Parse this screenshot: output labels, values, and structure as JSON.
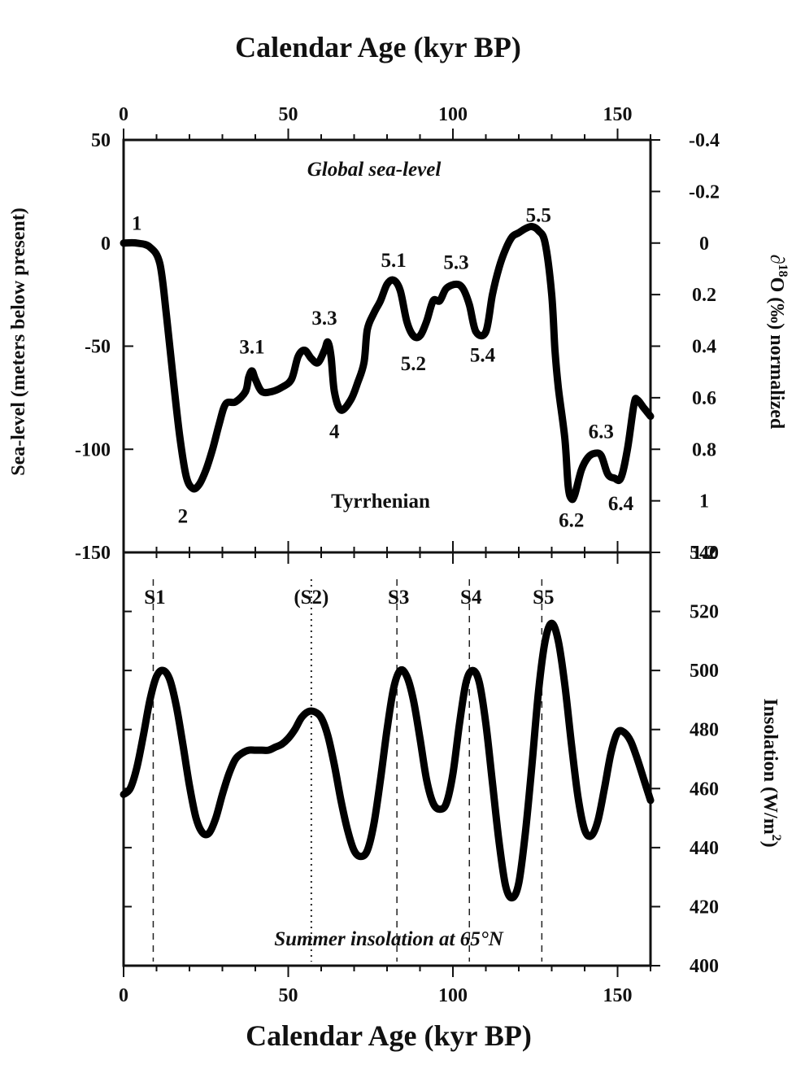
{
  "chart_data": [
    {
      "type": "line",
      "title": "Global sea-level",
      "title_style": "italic",
      "top_axis_title": "Calendar Age (kyr BP)",
      "xlabel": "Calendar Age (kyr BP)",
      "ylabel": "Sea-level (meters below present)",
      "y2label_parts": [
        "∂",
        "18",
        "O (‰) normalized"
      ],
      "xlim": [
        0,
        160
      ],
      "ylim": [
        -150,
        50
      ],
      "y2lim": [
        1.2,
        -0.4
      ],
      "x_ticks": [
        "0",
        "50",
        "100",
        "150"
      ],
      "y_ticks": [
        "50",
        "0",
        "-50",
        "-100",
        "-150"
      ],
      "y2_ticks": [
        "-0.4",
        "-0.2",
        "0",
        "0.2",
        "0.4",
        "0.6",
        "0.8",
        "1",
        "1.2"
      ],
      "region_label": "Tyrrhenian",
      "series": [
        {
          "x": [
            0,
            4,
            8,
            11,
            13,
            15,
            17,
            19,
            21,
            23,
            25,
            27,
            29,
            31,
            34,
            37,
            38,
            39,
            40,
            42,
            45,
            48,
            51,
            53,
            55,
            57,
            59,
            61,
            62,
            63,
            64,
            66,
            69,
            71,
            73,
            74,
            76,
            78,
            80,
            82,
            84,
            86,
            88,
            90,
            92,
            94,
            96,
            98,
            101,
            103,
            105,
            107,
            110,
            112,
            114,
            116,
            118,
            120,
            122,
            124,
            126,
            128,
            130,
            131,
            132,
            134,
            135,
            136,
            137,
            139,
            141,
            143,
            145,
            147,
            149,
            151,
            153,
            155,
            156,
            158,
            160
          ],
          "y": [
            0,
            0,
            -2,
            -10,
            -35,
            -65,
            -93,
            -113,
            -119,
            -117,
            -110,
            -100,
            -88,
            -78,
            -77,
            -72,
            -65,
            -62,
            -66,
            -72,
            -72,
            -70,
            -66,
            -55,
            -52,
            -56,
            -58,
            -52,
            -48,
            -55,
            -72,
            -81,
            -76,
            -68,
            -58,
            -42,
            -34,
            -28,
            -20,
            -18,
            -23,
            -38,
            -45,
            -45,
            -38,
            -28,
            -28,
            -22,
            -20,
            -22,
            -30,
            -43,
            -43,
            -25,
            -12,
            -3,
            3,
            5,
            7,
            8,
            6,
            0,
            -25,
            -52,
            -70,
            -95,
            -118,
            -124,
            -122,
            -110,
            -104,
            -102,
            -103,
            -112,
            -114,
            -114,
            -100,
            -78,
            -76,
            -80,
            -84
          ]
        }
      ],
      "annotations": [
        {
          "label": "1",
          "x": 4,
          "y": 10
        },
        {
          "label": "2",
          "x": 18,
          "y": -132
        },
        {
          "label": "3.1",
          "x": 39,
          "y": -50
        },
        {
          "label": "3.3",
          "x": 61,
          "y": -36
        },
        {
          "label": "4",
          "x": 64,
          "y": -91
        },
        {
          "label": "5.1",
          "x": 82,
          "y": -8
        },
        {
          "label": "5.2",
          "x": 88,
          "y": -58
        },
        {
          "label": "5.3",
          "x": 101,
          "y": -9
        },
        {
          "label": "5.4",
          "x": 109,
          "y": -54
        },
        {
          "label": "5.5",
          "x": 126,
          "y": 14
        },
        {
          "label": "6.2",
          "x": 136,
          "y": -134
        },
        {
          "label": "6.3",
          "x": 145,
          "y": -91
        },
        {
          "label": "6.4",
          "x": 151,
          "y": -126
        }
      ]
    },
    {
      "type": "line",
      "title": "Summer insolation at 65°N",
      "title_style": "italic",
      "xlabel": "Calendar Age (kyr BP)",
      "y2label": "Insolation (W/m²)",
      "y2label_parts": [
        "Insolation   (W/m",
        "2",
        ")"
      ],
      "xlim": [
        0,
        160
      ],
      "ylim": [
        400,
        540
      ],
      "x_ticks": [
        "0",
        "50",
        "100",
        "150"
      ],
      "y2_ticks": [
        "540",
        "520",
        "500",
        "480",
        "460",
        "440",
        "420",
        "400"
      ],
      "series": [
        {
          "x": [
            0,
            2,
            4,
            6,
            8,
            10,
            12,
            14,
            16,
            18,
            20,
            22,
            24,
            26,
            28,
            30,
            32,
            34,
            36,
            38,
            40,
            42,
            44,
            46,
            48,
            50,
            52,
            54,
            56,
            58,
            60,
            62,
            64,
            66,
            68,
            70,
            72,
            74,
            76,
            78,
            80,
            82,
            84,
            86,
            88,
            90,
            92,
            94,
            96,
            98,
            100,
            102,
            104,
            106,
            108,
            110,
            112,
            114,
            116,
            118,
            120,
            122,
            124,
            126,
            128,
            130,
            132,
            134,
            136,
            138,
            140,
            142,
            144,
            146,
            148,
            150,
            152,
            154,
            156,
            158,
            160
          ],
          "y": [
            458,
            460,
            467,
            478,
            490,
            498,
            500,
            497,
            488,
            475,
            461,
            450,
            445,
            445,
            450,
            458,
            465,
            470,
            472,
            473,
            473,
            473,
            473,
            474,
            475,
            477,
            480,
            484,
            486,
            486,
            484,
            478,
            468,
            456,
            446,
            439,
            437,
            439,
            448,
            463,
            480,
            494,
            500,
            498,
            490,
            477,
            463,
            455,
            453,
            455,
            465,
            482,
            496,
            500,
            496,
            482,
            462,
            442,
            427,
            423,
            428,
            445,
            468,
            493,
            510,
            516,
            510,
            495,
            475,
            457,
            446,
            444,
            449,
            460,
            472,
            479,
            479,
            476,
            470,
            463,
            456
          ]
        }
      ],
      "markers": [
        {
          "label": "S1",
          "x": 9,
          "style": "dashed"
        },
        {
          "label": "(S2)",
          "x": 57,
          "style": "dotted"
        },
        {
          "label": "S3",
          "x": 83,
          "style": "dashed"
        },
        {
          "label": "S4",
          "x": 105,
          "style": "dashed"
        },
        {
          "label": "S5",
          "x": 127,
          "style": "dashed"
        }
      ]
    }
  ]
}
